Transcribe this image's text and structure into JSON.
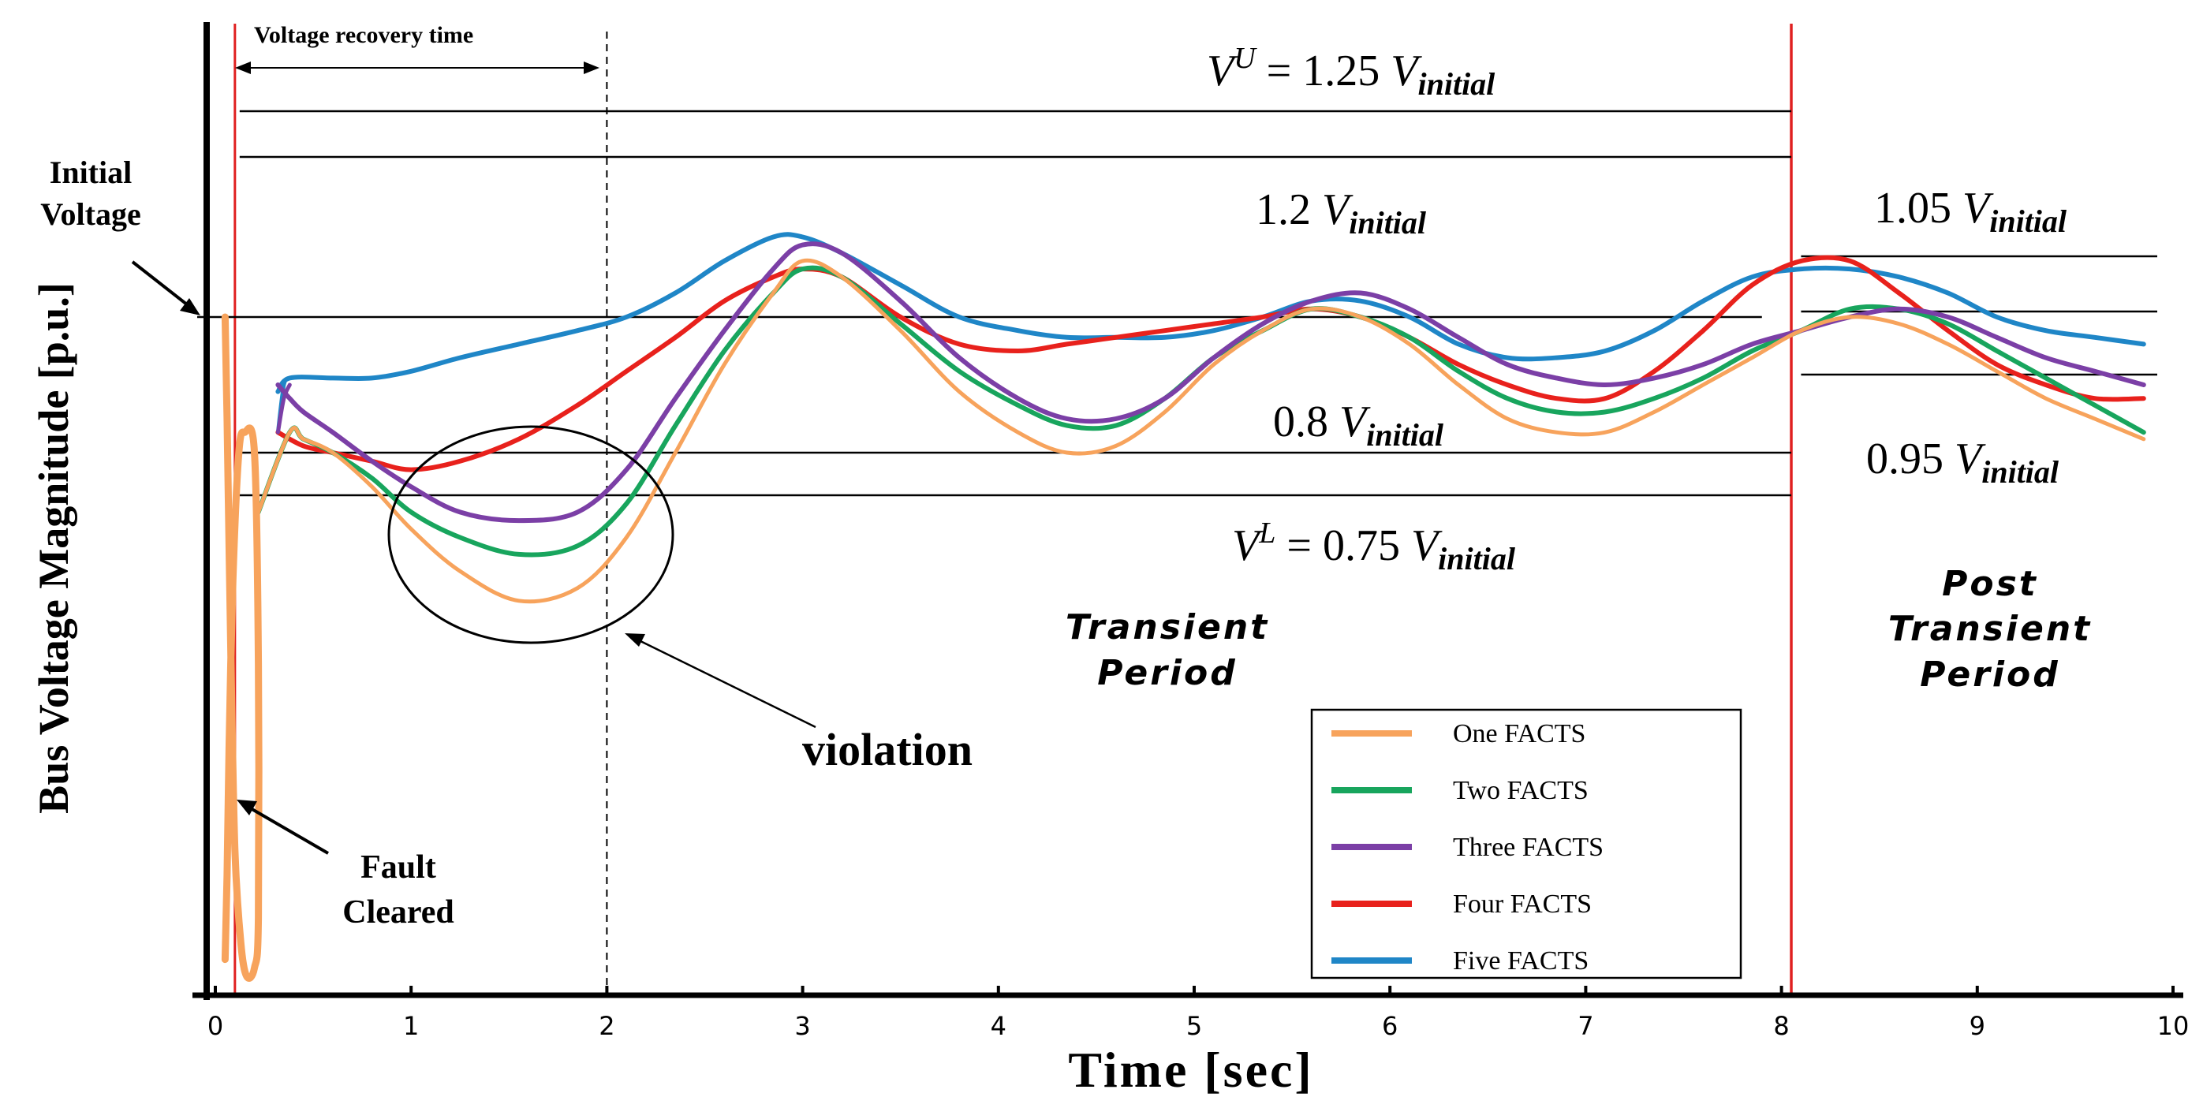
{
  "chart_data": {
    "type": "line",
    "xlabel": "Time [sec]",
    "ylabel": "Bus Voltage Magnitude [p.u.]",
    "xlim": [
      0,
      10
    ],
    "xticks": [
      "0",
      "1",
      "2",
      "3",
      "4",
      "5",
      "6",
      "7",
      "8",
      "9",
      "10"
    ],
    "grid": false,
    "legend_position": "bottom-right",
    "colors": {
      "One FACTS": "#f7a35c",
      "Two FACTS": "#18a55d",
      "Three FACTS": "#7b3fa6",
      "Four FACTS": "#e8211c",
      "Five FACTS": "#1f86c7",
      "limits": "#000000",
      "period_boundary": "#e02020"
    },
    "thresholds": {
      "vu": {
        "tex_base": "V",
        "tex_sup": "U",
        "eq": " = 1.25 ",
        "v": "V",
        "sub": "initial",
        "value": 1.25
      },
      "v12": {
        "coef": "1.2 ",
        "v": "V",
        "sub": "initial",
        "value": 1.2
      },
      "v08": {
        "coef": "0.8 ",
        "v": "V",
        "sub": "initial",
        "value": 0.8
      },
      "vl": {
        "tex_base": "V",
        "tex_sup": "L",
        "eq": " = 0.75 ",
        "v": "V",
        "sub": "initial",
        "value": 0.75
      },
      "v105": {
        "coef": "1.05 ",
        "v": "V",
        "sub": "initial",
        "value": 1.05
      },
      "v095": {
        "coef": "0.95 ",
        "v": "V",
        "sub": "initial",
        "value": 0.95
      }
    },
    "reference_lines": {
      "initial_voltage": 1.0,
      "fault_cleared_time": 0.1,
      "recovery_end_time": 2.0,
      "post_transient_start": 8.05
    },
    "annotations": {
      "recovery_time": "Voltage recovery time",
      "initial_voltage_1": "Initial",
      "initial_voltage_2": "Voltage",
      "fault_cleared_1": "Fault",
      "fault_cleared_2": "Cleared",
      "violation": "violation",
      "transient_1": "Transient",
      "transient_2": "Period",
      "post_1": "Post",
      "post_2": "Transient",
      "post_3": "Period"
    },
    "series": [
      {
        "name": "One FACTS",
        "x": [
          0.22,
          0.38,
          0.45,
          0.6,
          0.8,
          1.0,
          1.25,
          1.55,
          1.85,
          2.1,
          2.35,
          2.6,
          2.85,
          3.0,
          3.2,
          3.5,
          3.8,
          4.1,
          4.35,
          4.6,
          4.85,
          5.1,
          5.35,
          5.6,
          5.85,
          6.1,
          6.35,
          6.6,
          6.85,
          7.1,
          7.35,
          7.6,
          7.85,
          8.1,
          8.35,
          8.6,
          8.85,
          9.1,
          9.35,
          9.6,
          9.85
        ],
        "y": [
          0.73,
          0.83,
          0.82,
          0.8,
          0.76,
          0.71,
          0.66,
          0.625,
          0.64,
          0.7,
          0.8,
          0.93,
          1.03,
          1.07,
          1.05,
          0.98,
          0.89,
          0.83,
          0.8,
          0.81,
          0.86,
          0.93,
          0.98,
          1.01,
          1.0,
          0.96,
          0.9,
          0.85,
          0.83,
          0.83,
          0.86,
          0.9,
          0.94,
          0.98,
          1.0,
          0.99,
          0.96,
          0.92,
          0.88,
          0.85,
          0.82
        ]
      },
      {
        "name": "Two FACTS",
        "x": [
          0.22,
          0.38,
          0.45,
          0.6,
          0.8,
          1.0,
          1.25,
          1.55,
          1.85,
          2.1,
          2.35,
          2.6,
          2.85,
          3.0,
          3.2,
          3.5,
          3.8,
          4.1,
          4.35,
          4.6,
          4.85,
          5.1,
          5.35,
          5.6,
          5.85,
          6.1,
          6.35,
          6.6,
          6.85,
          7.1,
          7.35,
          7.6,
          7.85,
          8.1,
          8.35,
          8.6,
          8.85,
          9.1,
          9.35,
          9.6,
          9.85
        ],
        "y": [
          0.73,
          0.83,
          0.82,
          0.8,
          0.77,
          0.73,
          0.7,
          0.68,
          0.69,
          0.74,
          0.84,
          0.95,
          1.03,
          1.06,
          1.05,
          0.99,
          0.92,
          0.87,
          0.84,
          0.84,
          0.88,
          0.94,
          0.98,
          1.01,
          1.0,
          0.97,
          0.92,
          0.88,
          0.86,
          0.86,
          0.88,
          0.91,
          0.95,
          0.98,
          1.01,
          1.01,
          0.99,
          0.95,
          0.91,
          0.87,
          0.83
        ]
      },
      {
        "name": "Three FACTS",
        "x": [
          0.32,
          0.38,
          0.45,
          0.6,
          0.8,
          1.0,
          1.25,
          1.55,
          1.85,
          2.1,
          2.35,
          2.6,
          2.85,
          3.0,
          3.2,
          3.5,
          3.8,
          4.1,
          4.35,
          4.6,
          4.85,
          5.1,
          5.35,
          5.6,
          5.85,
          6.1,
          6.35,
          6.6,
          6.85,
          7.1,
          7.35,
          7.6,
          7.85,
          8.1,
          8.35,
          8.6,
          8.85,
          9.1,
          9.35,
          9.6,
          9.85
        ],
        "y": [
          0.9,
          0.88,
          0.86,
          0.83,
          0.79,
          0.76,
          0.73,
          0.72,
          0.73,
          0.78,
          0.88,
          0.98,
          1.06,
          1.09,
          1.08,
          1.02,
          0.94,
          0.88,
          0.85,
          0.85,
          0.88,
          0.94,
          0.99,
          1.02,
          1.03,
          1.01,
          0.97,
          0.93,
          0.91,
          0.9,
          0.91,
          0.93,
          0.96,
          0.98,
          1.0,
          1.01,
          1.0,
          0.97,
          0.94,
          0.92,
          0.9
        ]
      },
      {
        "name": "Four FACTS",
        "x": [
          0.32,
          0.45,
          0.6,
          0.8,
          1.0,
          1.25,
          1.55,
          1.85,
          2.1,
          2.35,
          2.6,
          2.85,
          3.0,
          3.2,
          3.5,
          3.8,
          4.1,
          4.35,
          4.6,
          4.85,
          5.1,
          5.35,
          5.6,
          5.85,
          6.1,
          6.35,
          6.6,
          6.85,
          7.1,
          7.35,
          7.6,
          7.85,
          8.1,
          8.35,
          8.6,
          8.85,
          9.1,
          9.35,
          9.6,
          9.85
        ],
        "y": [
          0.83,
          0.81,
          0.8,
          0.79,
          0.78,
          0.79,
          0.82,
          0.87,
          0.92,
          0.97,
          1.02,
          1.05,
          1.06,
          1.05,
          1.0,
          0.96,
          0.95,
          0.96,
          0.97,
          0.98,
          0.99,
          1.0,
          1.01,
          1.0,
          0.97,
          0.93,
          0.9,
          0.88,
          0.88,
          0.92,
          0.98,
          1.04,
          1.07,
          1.07,
          1.03,
          0.98,
          0.93,
          0.9,
          0.88,
          0.88
        ]
      },
      {
        "name": "Five FACTS",
        "x": [
          0.32,
          0.38,
          0.6,
          0.8,
          1.0,
          1.25,
          1.55,
          1.85,
          2.1,
          2.35,
          2.6,
          2.85,
          3.0,
          3.2,
          3.5,
          3.8,
          4.1,
          4.35,
          4.6,
          4.85,
          5.1,
          5.35,
          5.6,
          5.85,
          6.1,
          6.35,
          6.6,
          6.85,
          7.1,
          7.35,
          7.6,
          7.85,
          8.1,
          8.35,
          8.6,
          8.85,
          9.1,
          9.35,
          9.6,
          9.85
        ],
        "y": [
          0.89,
          0.91,
          0.91,
          0.91,
          0.92,
          0.94,
          0.96,
          0.98,
          1.0,
          1.03,
          1.07,
          1.1,
          1.1,
          1.08,
          1.04,
          1.0,
          0.98,
          0.97,
          0.97,
          0.97,
          0.98,
          1.0,
          1.02,
          1.02,
          1.0,
          0.96,
          0.94,
          0.94,
          0.95,
          0.98,
          1.02,
          1.05,
          1.06,
          1.06,
          1.05,
          1.03,
          1.0,
          0.98,
          0.97,
          0.96
        ]
      }
    ],
    "fault_transient": {
      "One FACTS": {
        "x": [
          0.05,
          0.06,
          0.08,
          0.1,
          0.13,
          0.16,
          0.2,
          0.22,
          0.22,
          0.2,
          0.15,
          0.12,
          0.09,
          0.07,
          0.06,
          0.05
        ],
        "y": [
          1.0,
          0.85,
          0.55,
          0.33,
          0.22,
          0.18,
          0.19,
          0.25,
          0.55,
          0.8,
          0.83,
          0.8,
          0.65,
          0.45,
          0.3,
          0.2
        ]
      },
      "Three FACTS": {
        "x": [
          0.32,
          0.35,
          0.38
        ],
        "y": [
          0.83,
          0.88,
          0.9
        ]
      },
      "Five FACTS": {
        "x": [
          0.32,
          0.35,
          0.38
        ],
        "y": [
          0.83,
          0.9,
          0.91
        ]
      }
    },
    "legend": [
      "One FACTS",
      "Two FACTS",
      "Three FACTS",
      "Four FACTS",
      "Five FACTS"
    ]
  }
}
